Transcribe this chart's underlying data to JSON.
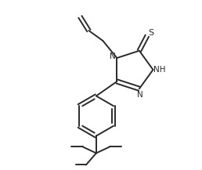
{
  "bg_color": "#ffffff",
  "line_color": "#2a2a2a",
  "line_width": 1.4,
  "font_size_label": 7.5,
  "figsize": [
    2.58,
    2.17
  ],
  "dpi": 100,
  "xlim": [
    0,
    2.58
  ],
  "ylim": [
    0,
    2.17
  ]
}
